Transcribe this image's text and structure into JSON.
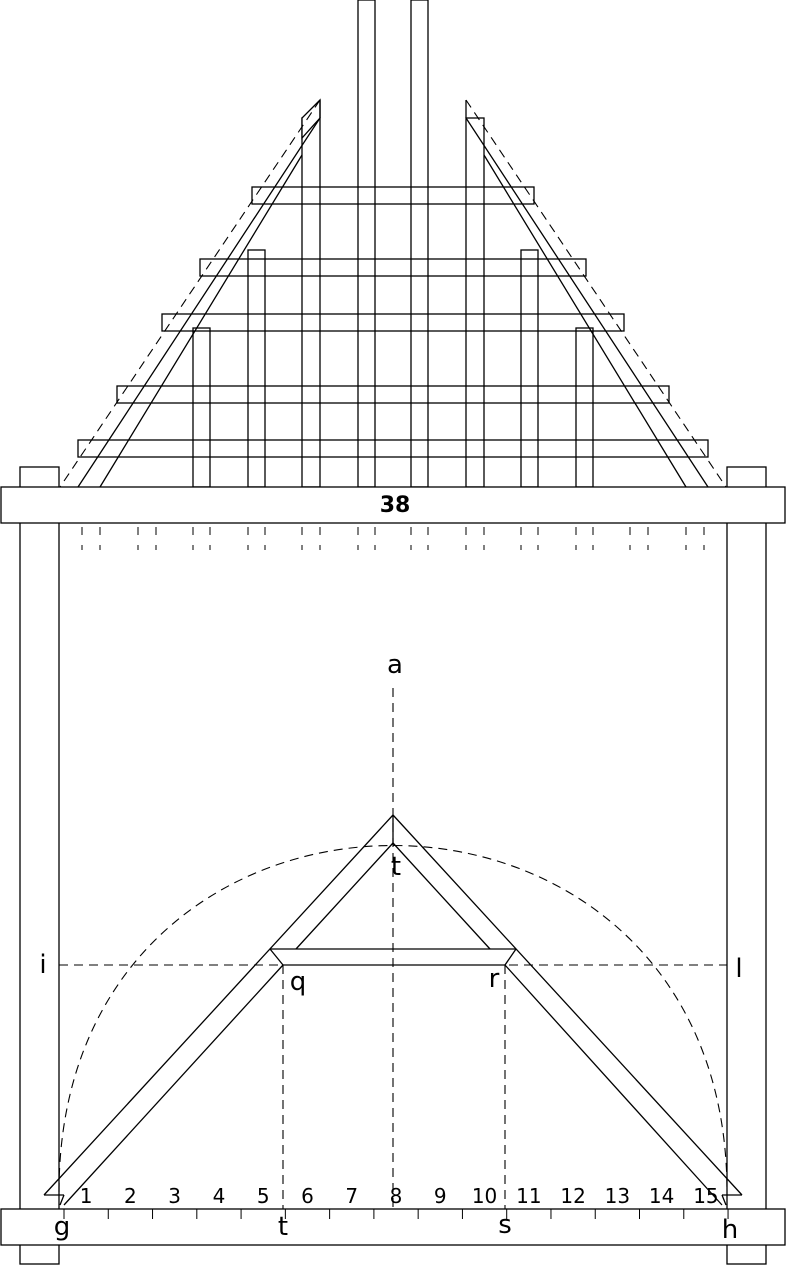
{
  "beam_number": "38",
  "point_labels": {
    "a": "a",
    "t_top": "t",
    "i": "i",
    "l": "l",
    "q": "q",
    "r": "r",
    "g": "g",
    "t_bottom": "t",
    "s": "s",
    "h": "h"
  },
  "scale_numbers": [
    "1",
    "2",
    "3",
    "4",
    "5",
    "6",
    "7",
    "8",
    "9",
    "10",
    "11",
    "12",
    "13",
    "14",
    "15"
  ]
}
